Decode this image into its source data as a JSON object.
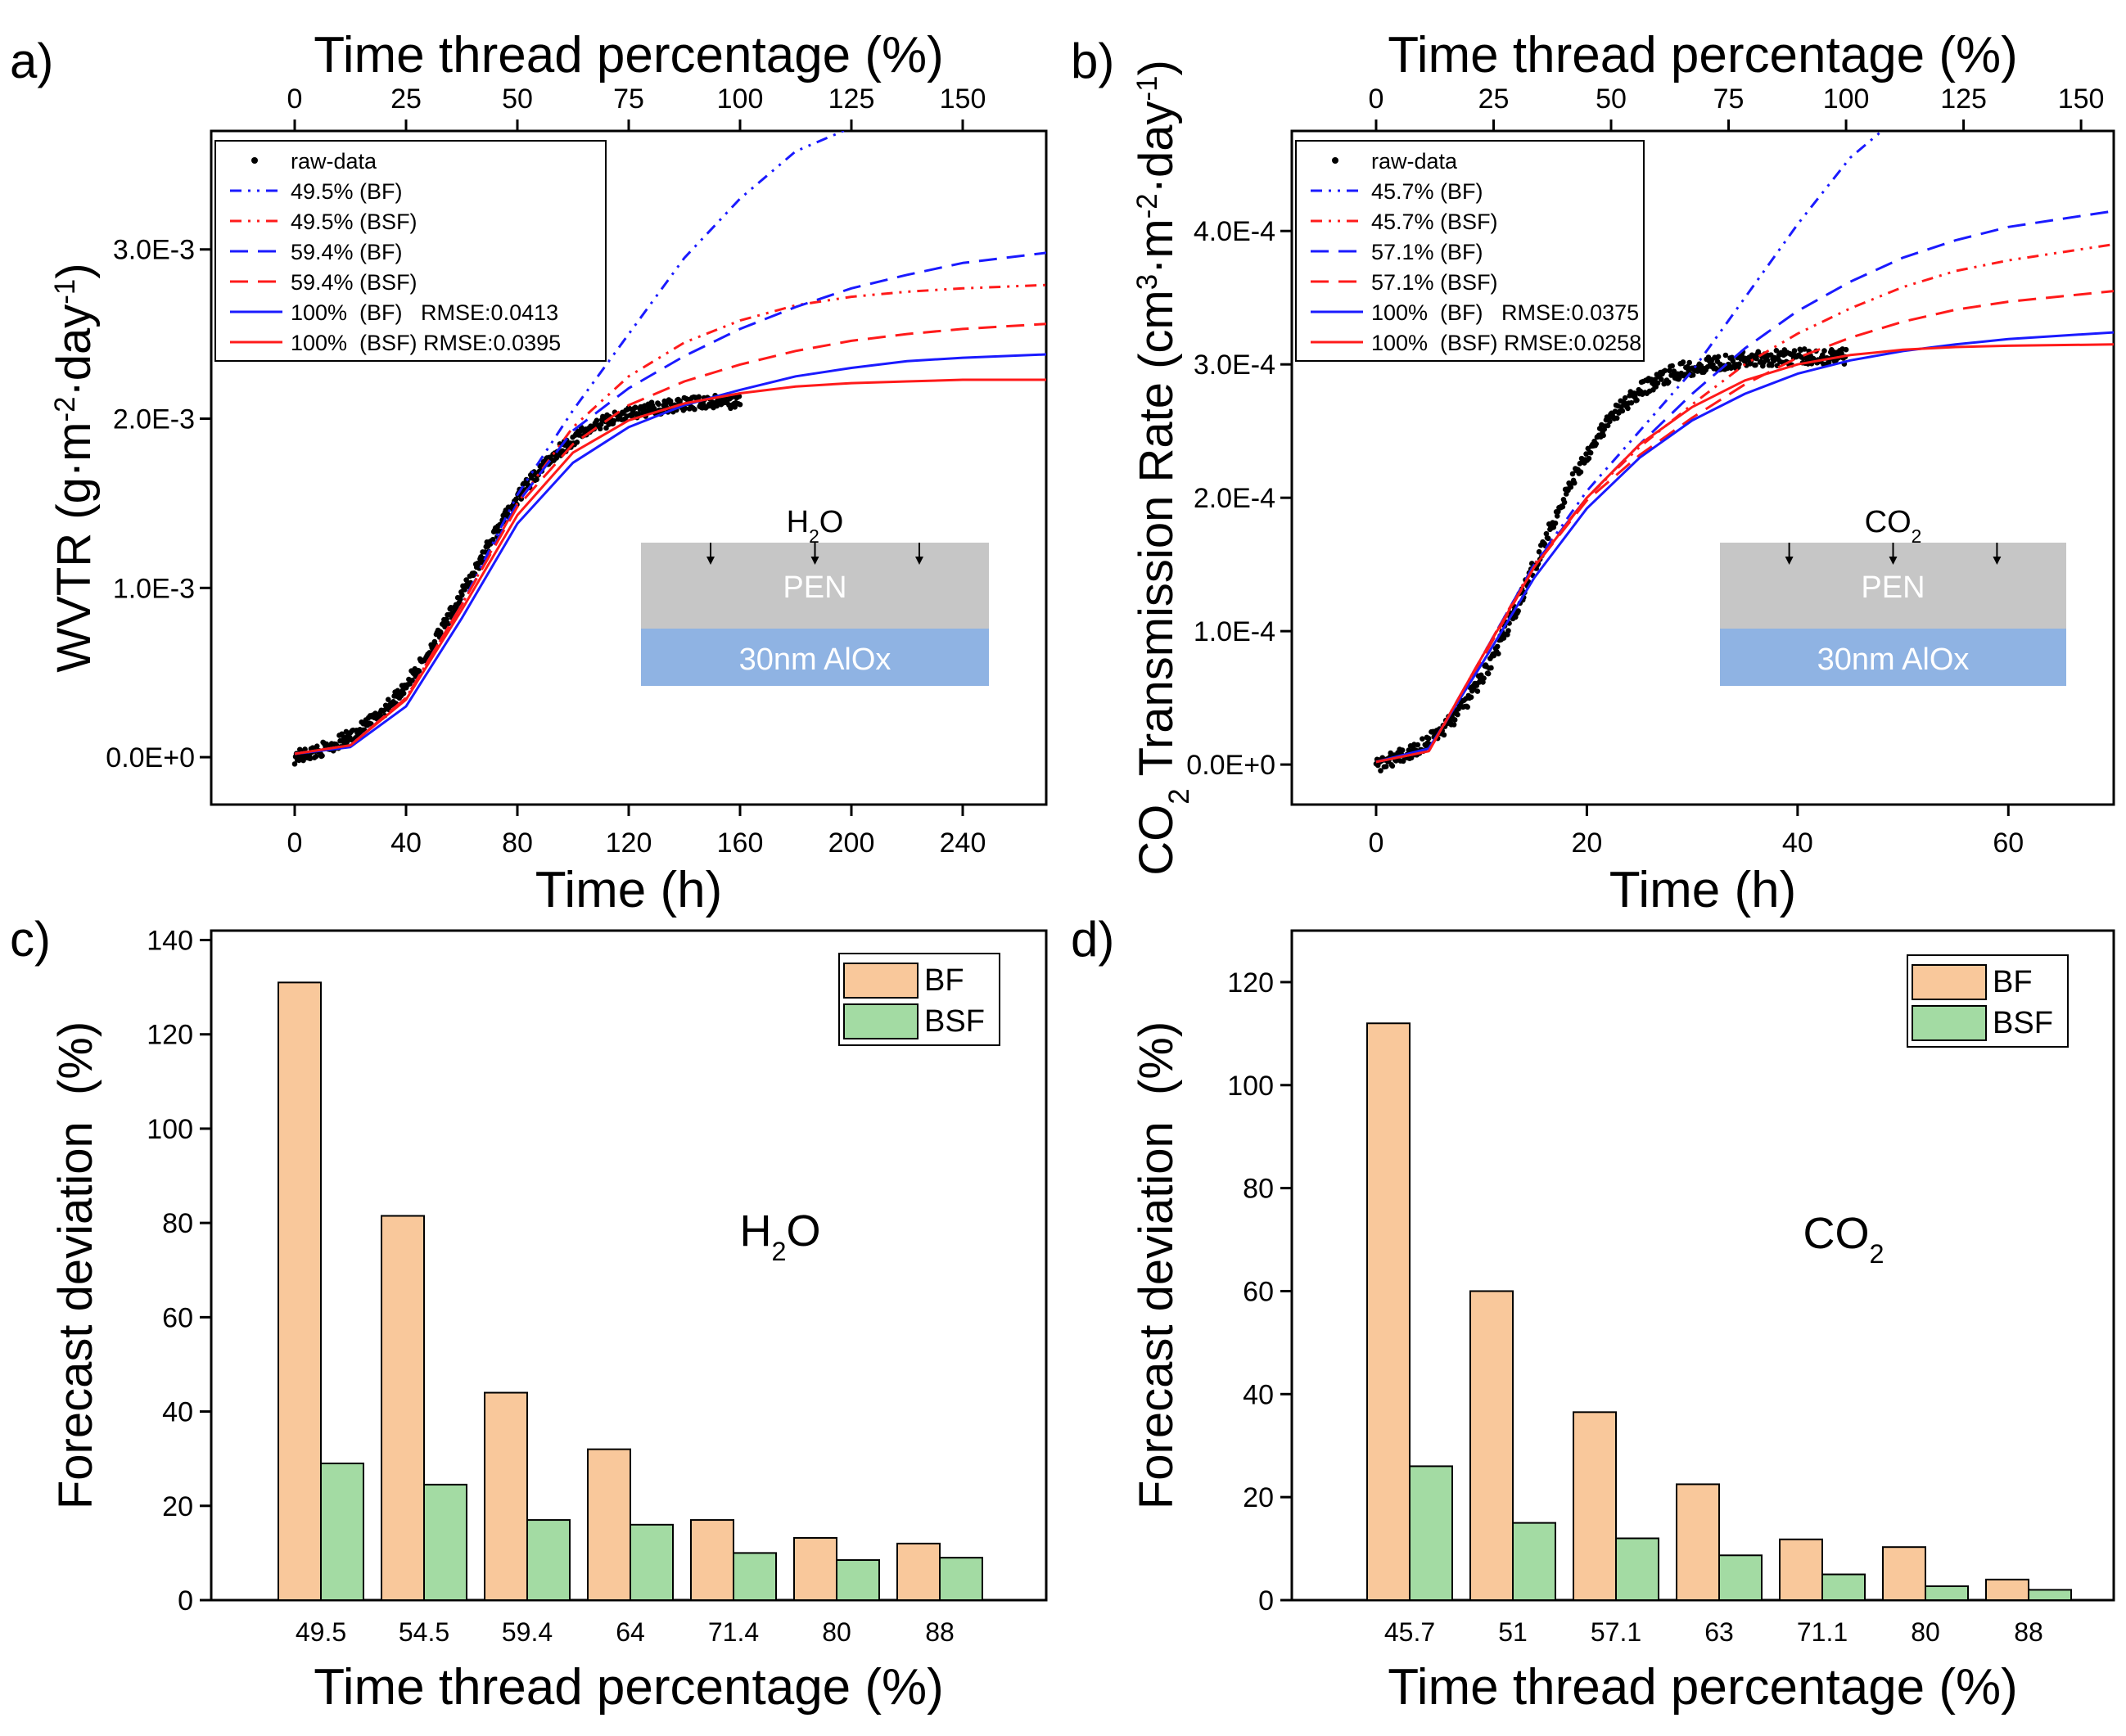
{
  "chart_data": [
    {
      "panel": "a)",
      "type": "line",
      "title": "",
      "xlabel": "Time (h)",
      "ylabel": "WVTR (g·m⁻²·day⁻¹)",
      "ylabel_parts": [
        "WVTR (g·m",
        "-2",
        "·day",
        "-1",
        ")"
      ],
      "x2label": "Time thread percentage (%)",
      "xlim": [
        -30,
        270
      ],
      "ylim": [
        -0.00028,
        0.0037
      ],
      "xticks": [
        0,
        40,
        80,
        120,
        160,
        200,
        240
      ],
      "yticks": [
        0,
        0.001,
        0.002,
        0.003
      ],
      "ytick_labels": [
        "0.0E+0",
        "1.0E-3",
        "2.0E-3",
        "3.0E-3"
      ],
      "x2ticks": [
        0,
        25,
        50,
        75,
        100,
        125,
        150
      ],
      "x2_scale_note": "100% = 160 h",
      "legend": {
        "position": "top-left",
        "entries": [
          {
            "label": "raw-data",
            "style": "dot",
            "color": "#000000"
          },
          {
            "label": "49.5% (BF)",
            "style": "dashdotdot",
            "color": "#1a1aff"
          },
          {
            "label": "49.5% (BSF)",
            "style": "dashdotdot",
            "color": "#ff1a1a"
          },
          {
            "label": "59.4% (BF)",
            "style": "dash",
            "color": "#1a1aff"
          },
          {
            "label": "59.4% (BSF)",
            "style": "dash",
            "color": "#ff1a1a"
          },
          {
            "label": "100%  (BF)   RMSE:0.0413",
            "style": "solid",
            "color": "#1a1aff"
          },
          {
            "label": "100%  (BSF) RMSE:0.0395",
            "style": "solid",
            "color": "#ff1a1a"
          }
        ]
      },
      "series": [
        {
          "name": "49.5% (BF)",
          "color": "#1a1aff",
          "style": "dashdotdot",
          "x": [
            0,
            20,
            40,
            60,
            80,
            100,
            120,
            140,
            160,
            180,
            200
          ],
          "y": [
            2e-05,
            7e-05,
            0.00035,
            0.0009,
            0.00155,
            0.00205,
            0.0025,
            0.00295,
            0.0033,
            0.00358,
            0.00372
          ]
        },
        {
          "name": "49.5% (BSF)",
          "color": "#ff1a1a",
          "style": "dashdotdot",
          "x": [
            0,
            20,
            40,
            60,
            80,
            100,
            120,
            140,
            160,
            180,
            200,
            220,
            240,
            270
          ],
          "y": [
            2e-05,
            7e-05,
            0.00035,
            0.0009,
            0.0015,
            0.00195,
            0.00225,
            0.00245,
            0.00258,
            0.00267,
            0.00272,
            0.00275,
            0.00277,
            0.00279
          ]
        },
        {
          "name": "59.4% (BF)",
          "color": "#1a1aff",
          "style": "dash",
          "x": [
            0,
            20,
            40,
            60,
            80,
            100,
            120,
            140,
            160,
            180,
            200,
            220,
            240,
            270
          ],
          "y": [
            2e-05,
            7e-05,
            0.00035,
            0.0009,
            0.0015,
            0.00193,
            0.00218,
            0.00237,
            0.00253,
            0.00266,
            0.00277,
            0.00285,
            0.00292,
            0.00298
          ]
        },
        {
          "name": "59.4% (BSF)",
          "color": "#ff1a1a",
          "style": "dash",
          "x": [
            0,
            20,
            40,
            60,
            80,
            100,
            120,
            140,
            160,
            180,
            200,
            220,
            240,
            270
          ],
          "y": [
            2e-05,
            7e-05,
            0.00035,
            0.0009,
            0.00148,
            0.00185,
            0.00208,
            0.00222,
            0.00232,
            0.0024,
            0.00246,
            0.0025,
            0.00253,
            0.00256
          ]
        },
        {
          "name": "100% (BF)",
          "color": "#1a1aff",
          "style": "solid",
          "x": [
            0,
            20,
            40,
            60,
            80,
            100,
            120,
            140,
            160,
            180,
            200,
            220,
            240,
            270
          ],
          "y": [
            2e-05,
            6e-05,
            0.0003,
            0.00082,
            0.00138,
            0.00174,
            0.00195,
            0.00208,
            0.00217,
            0.00225,
            0.0023,
            0.00234,
            0.00236,
            0.00238
          ]
        },
        {
          "name": "100% (BSF)",
          "color": "#ff1a1a",
          "style": "solid",
          "x": [
            0,
            20,
            40,
            60,
            80,
            100,
            120,
            140,
            160,
            180,
            200,
            220,
            240,
            270
          ],
          "y": [
            2e-05,
            7e-05,
            0.00034,
            0.00087,
            0.00143,
            0.0018,
            0.00199,
            0.00209,
            0.00215,
            0.00219,
            0.00221,
            0.00222,
            0.00223,
            0.00223
          ]
        }
      ],
      "raw_data": {
        "x_max": 160,
        "noise": 4e-05,
        "model": "sigmoid",
        "center": 62,
        "scale": 18,
        "amplitude": 0.00218
      },
      "inset": {
        "gas": "H",
        "gas_sub": "2",
        "gas_tail": "O",
        "layer1": "PEN",
        "layer2": "30nm AlOx"
      }
    },
    {
      "panel": "b)",
      "type": "line",
      "title": "",
      "xlabel": "Time (h)",
      "ylabel": "CO₂ Transmission Rate (cm³·m⁻²·day⁻¹)",
      "ylabel_parts": [
        "CO",
        "2",
        " Transmission Rate (cm",
        "3",
        "·m",
        "-2",
        "·day",
        "-1",
        ")"
      ],
      "x2label": "Time thread percentage (%)",
      "xlim": [
        -8,
        70
      ],
      "ylim": [
        -3e-05,
        0.000475
      ],
      "xticks": [
        0,
        20,
        40,
        60
      ],
      "yticks": [
        0,
        0.0001,
        0.0002,
        0.0003,
        0.0004
      ],
      "ytick_labels": [
        "0.0E+0",
        "1.0E-4",
        "2.0E-4",
        "3.0E-4",
        "4.0E-4"
      ],
      "x2ticks": [
        0,
        25,
        50,
        75,
        100,
        125,
        150
      ],
      "x2_scale_note": "100% = 44.6 h",
      "legend": {
        "position": "top-left",
        "entries": [
          {
            "label": "raw-data",
            "style": "dot",
            "color": "#000000"
          },
          {
            "label": "45.7% (BF)",
            "style": "dashdotdot",
            "color": "#1a1aff"
          },
          {
            "label": "45.7% (BSF)",
            "style": "dashdotdot",
            "color": "#ff1a1a"
          },
          {
            "label": "57.1% (BF)",
            "style": "dash",
            "color": "#1a1aff"
          },
          {
            "label": "57.1% (BSF)",
            "style": "dash",
            "color": "#ff1a1a"
          },
          {
            "label": "100%  (BF)   RMSE:0.0375",
            "style": "solid",
            "color": "#1a1aff"
          },
          {
            "label": "100%  (BSF) RMSE:0.0258",
            "style": "solid",
            "color": "#ff1a1a"
          }
        ]
      },
      "series": [
        {
          "name": "45.7% (BF)",
          "color": "#1a1aff",
          "style": "dashdotdot",
          "x": [
            0,
            5,
            10,
            15,
            20,
            25,
            30,
            35,
            40,
            45,
            48
          ],
          "y": [
            2e-06,
            1e-05,
            8e-05,
            0.00015,
            0.000205,
            0.00025,
            0.000295,
            0.00035,
            0.000405,
            0.000455,
            0.000475
          ]
        },
        {
          "name": "45.7% (BSF)",
          "color": "#ff1a1a",
          "style": "dashdotdot",
          "x": [
            0,
            5,
            10,
            15,
            20,
            25,
            30,
            35,
            40,
            45,
            50,
            55,
            60,
            70
          ],
          "y": [
            2e-06,
            1e-05,
            8e-05,
            0.00015,
            0.0002,
            0.000238,
            0.00027,
            0.0003,
            0.000323,
            0.000342,
            0.000358,
            0.00037,
            0.000378,
            0.00039
          ]
        },
        {
          "name": "57.1% (BF)",
          "color": "#1a1aff",
          "style": "dash",
          "x": [
            0,
            5,
            10,
            15,
            20,
            25,
            30,
            35,
            40,
            45,
            50,
            55,
            60,
            70
          ],
          "y": [
            2e-06,
            1e-05,
            8e-05,
            0.00015,
            0.0002,
            0.00024,
            0.000278,
            0.000312,
            0.00034,
            0.000362,
            0.00038,
            0.000393,
            0.000403,
            0.000415
          ]
        },
        {
          "name": "57.1% (BSF)",
          "color": "#ff1a1a",
          "style": "dash",
          "x": [
            0,
            5,
            10,
            15,
            20,
            25,
            30,
            35,
            40,
            45,
            50,
            55,
            60,
            70
          ],
          "y": [
            2e-06,
            1e-05,
            7.8e-05,
            0.000148,
            0.000198,
            0.000232,
            0.00026,
            0.000285,
            0.000305,
            0.00032,
            0.000332,
            0.000341,
            0.000347,
            0.000355
          ]
        },
        {
          "name": "100% (BF)",
          "color": "#1a1aff",
          "style": "solid",
          "x": [
            0,
            5,
            10,
            15,
            20,
            25,
            30,
            35,
            40,
            45,
            50,
            55,
            60,
            70
          ],
          "y": [
            2e-06,
            1.2e-05,
            7.5e-05,
            0.00014,
            0.000192,
            0.00023,
            0.000258,
            0.000278,
            0.000293,
            0.000303,
            0.00031,
            0.000315,
            0.000319,
            0.000324
          ]
        },
        {
          "name": "100% (BSF)",
          "color": "#ff1a1a",
          "style": "solid",
          "x": [
            0,
            5,
            10,
            15,
            20,
            25,
            30,
            35,
            40,
            45,
            50,
            55,
            60,
            70
          ],
          "y": [
            2e-06,
            1e-05,
            8e-05,
            0.000148,
            0.0002,
            0.00024,
            0.000268,
            0.000288,
            0.0003,
            0.000307,
            0.000311,
            0.000313,
            0.000314,
            0.000315
          ]
        }
      ],
      "raw_data": {
        "x_max": 44.6,
        "noise": 6e-06,
        "model": "sigmoid",
        "center": 15,
        "scale": 4.2,
        "amplitude": 0.000315
      },
      "inset": {
        "gas": "CO",
        "gas_sub": "2",
        "gas_tail": "",
        "layer1": "PEN",
        "layer2": "30nm AlOx"
      }
    },
    {
      "panel": "c)",
      "type": "bar",
      "title": "",
      "xlabel": "Time thread percentage (%)",
      "ylabel": "Forecast deviation  (%)",
      "ylim": [
        0,
        142
      ],
      "yticks": [
        0,
        20,
        40,
        60,
        80,
        100,
        120,
        140
      ],
      "categories": [
        "49.5",
        "54.5",
        "59.4",
        "64",
        "71.4",
        "80",
        "88"
      ],
      "series": [
        {
          "name": "BF",
          "color": "#f9c89b",
          "values": [
            131,
            81.5,
            44,
            32,
            17,
            13.2,
            12
          ]
        },
        {
          "name": "BSF",
          "color": "#a3dba3",
          "values": [
            29,
            24.5,
            17,
            16,
            10,
            8.5,
            9
          ]
        }
      ],
      "legend": {
        "position": "top-right"
      },
      "annotation": {
        "main": "H",
        "sub": "2",
        "tail": "O"
      }
    },
    {
      "panel": "d)",
      "type": "bar",
      "title": "",
      "xlabel": "Time thread percentage (%)",
      "ylabel": "Forecast deviation  (%)",
      "ylim": [
        0,
        130
      ],
      "yticks": [
        0,
        20,
        40,
        60,
        80,
        100,
        120
      ],
      "categories": [
        "45.7",
        "51",
        "57.1",
        "63",
        "71.1",
        "80",
        "88"
      ],
      "series": [
        {
          "name": "BF",
          "color": "#f9c89b",
          "values": [
            112,
            60,
            36.5,
            22.5,
            11.8,
            10.3,
            4
          ]
        },
        {
          "name": "BSF",
          "color": "#a3dba3",
          "values": [
            26,
            15,
            12,
            8.7,
            5,
            2.7,
            2
          ]
        }
      ],
      "legend": {
        "position": "top-right"
      },
      "annotation": {
        "main": "CO",
        "sub": "2",
        "tail": ""
      }
    }
  ]
}
